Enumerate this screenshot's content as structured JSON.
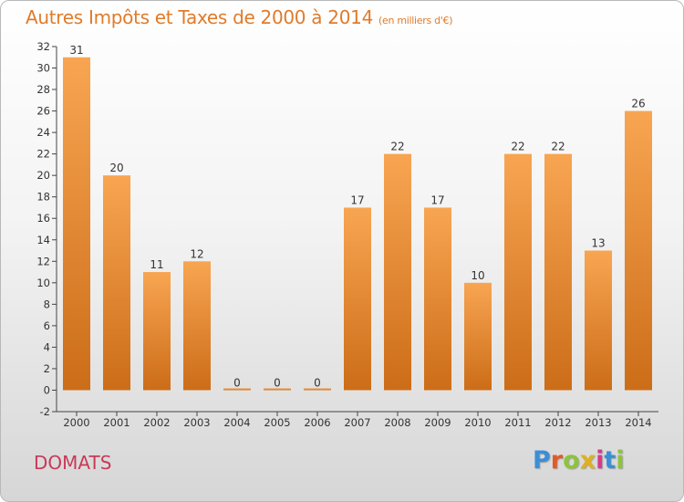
{
  "header": {
    "title": "Autres Impôts et Taxes de 2000 à 2014",
    "unit": "(en milliers d'€)"
  },
  "footer": {
    "commune": "DOMATS",
    "brand": "Proxiti"
  },
  "colors": {
    "title": "#e07b2a",
    "commune": "#c93a56",
    "bar_light": "#f8a552",
    "bar_dark": "#cc6d18"
  },
  "chart_data": {
    "type": "bar",
    "title": "Autres Impôts et Taxes de 2000 à 2014",
    "subtitle": "(en milliers d'€)",
    "xlabel": "",
    "ylabel": "",
    "categories": [
      "2000",
      "2001",
      "2002",
      "2003",
      "2004",
      "2005",
      "2006",
      "2007",
      "2008",
      "2009",
      "2010",
      "2011",
      "2012",
      "2013",
      "2014"
    ],
    "values": [
      31,
      20,
      11,
      12,
      0,
      0,
      0,
      17,
      22,
      17,
      10,
      22,
      22,
      13,
      26
    ],
    "ylim": [
      -2,
      32
    ],
    "yticks": [
      -2,
      0,
      2,
      4,
      6,
      8,
      10,
      12,
      14,
      16,
      18,
      20,
      22,
      24,
      26,
      28,
      30,
      32
    ],
    "grid": false,
    "legend": "none",
    "data_labels": true
  }
}
